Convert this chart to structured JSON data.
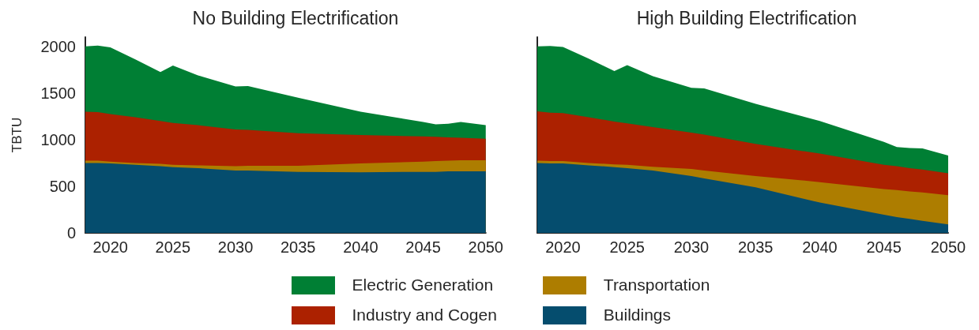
{
  "chart_data": [
    {
      "type": "area",
      "title": "No Building Electrification",
      "ylabel": "TBTU",
      "stacked": true,
      "legend": "bottom",
      "x": [
        2018,
        2019,
        2020,
        2022,
        2024,
        2025,
        2027,
        2030,
        2031,
        2035,
        2040,
        2045,
        2046,
        2047,
        2048,
        2050
      ],
      "series": [
        {
          "name": "Buildings",
          "color": "#054d6e",
          "values": [
            750,
            750,
            745,
            730,
            715,
            705,
            695,
            670,
            670,
            655,
            650,
            655,
            655,
            660,
            660,
            660
          ]
        },
        {
          "name": "Transportation",
          "color": "#ad7d00",
          "values": [
            25,
            25,
            20,
            20,
            25,
            25,
            30,
            45,
            50,
            65,
            95,
            110,
            115,
            115,
            120,
            120
          ]
        },
        {
          "name": "Industry and Cogen",
          "color": "#ac2100",
          "values": [
            525,
            520,
            510,
            490,
            460,
            450,
            430,
            395,
            385,
            350,
            305,
            270,
            260,
            250,
            240,
            230
          ]
        },
        {
          "name": "Electric Generation",
          "color": "#007f34",
          "values": [
            700,
            715,
            715,
            620,
            525,
            615,
            535,
            460,
            470,
            380,
            250,
            155,
            135,
            145,
            170,
            145
          ]
        }
      ],
      "xlim": [
        2018,
        2050
      ],
      "xticks": [
        2020,
        2025,
        2030,
        2035,
        2040,
        2045,
        2050
      ],
      "ylim": [
        0,
        2100
      ],
      "yticks": [
        0,
        500,
        1000,
        1500,
        2000
      ],
      "grid": false
    },
    {
      "type": "area",
      "title": "High Building Electrification",
      "stacked": true,
      "tick_labels": "x",
      "x": [
        2018,
        2019,
        2020,
        2022,
        2024,
        2025,
        2027,
        2030,
        2031,
        2035,
        2040,
        2045,
        2046,
        2047,
        2048,
        2050
      ],
      "series": [
        {
          "color": "#054d6e",
          "values": [
            750,
            745,
            745,
            725,
            705,
            695,
            670,
            610,
            585,
            490,
            325,
            195,
            170,
            150,
            130,
            90
          ]
        },
        {
          "color": "#ad7d00",
          "values": [
            25,
            25,
            25,
            25,
            30,
            35,
            40,
            75,
            85,
            120,
            220,
            275,
            290,
            295,
            305,
            315
          ]
        },
        {
          "color": "#ac2100",
          "values": [
            530,
            520,
            515,
            490,
            460,
            445,
            425,
            390,
            385,
            345,
            305,
            260,
            255,
            250,
            245,
            235
          ]
        },
        {
          "color": "#007f34",
          "values": [
            695,
            715,
            710,
            630,
            540,
            625,
            545,
            480,
            495,
            430,
            350,
            245,
            205,
            215,
            225,
            190
          ]
        }
      ],
      "xlim": [
        2018,
        2050
      ],
      "xticks": [
        2020,
        2025,
        2030,
        2035,
        2040,
        2045,
        2050
      ],
      "ylim": [
        0,
        2100
      ],
      "yticks": [
        0,
        500,
        1000,
        1500,
        2000
      ],
      "grid": false
    }
  ]
}
